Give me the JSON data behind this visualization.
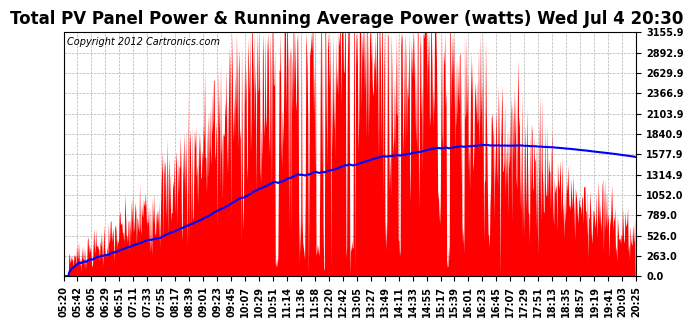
{
  "title": "Total PV Panel Power & Running Average Power (watts) Wed Jul 4 20:30",
  "copyright": "Copyright 2012 Cartronics.com",
  "ymin": 0.0,
  "ymax": 3155.9,
  "ytick_labels": [
    "0.0",
    "263.0",
    "526.0",
    "789.0",
    "1052.0",
    "1314.9",
    "1577.9",
    "1840.9",
    "2103.9",
    "2366.9",
    "2629.9",
    "2892.9",
    "3155.9"
  ],
  "ytick_values": [
    0.0,
    263.0,
    526.0,
    789.0,
    1052.0,
    1314.9,
    1577.9,
    1840.9,
    2103.9,
    2366.9,
    2629.9,
    2892.9,
    3155.9
  ],
  "background_color": "#ffffff",
  "fill_color": "#ff0000",
  "line_color": "#0000ff",
  "grid_color": "#aaaaaa",
  "title_fontsize": 12,
  "copyright_fontsize": 7,
  "tick_fontsize": 7,
  "xtick_labels": [
    "05:20",
    "05:42",
    "06:05",
    "06:29",
    "06:51",
    "07:11",
    "07:33",
    "07:55",
    "08:17",
    "08:39",
    "09:01",
    "09:23",
    "09:45",
    "10:07",
    "10:29",
    "10:51",
    "11:14",
    "11:36",
    "11:58",
    "12:20",
    "12:42",
    "13:05",
    "13:27",
    "13:49",
    "14:11",
    "14:33",
    "14:55",
    "15:17",
    "15:39",
    "16:01",
    "16:23",
    "16:45",
    "17:07",
    "17:29",
    "17:51",
    "18:13",
    "18:35",
    "18:57",
    "19:19",
    "19:41",
    "20:03",
    "20:25"
  ]
}
